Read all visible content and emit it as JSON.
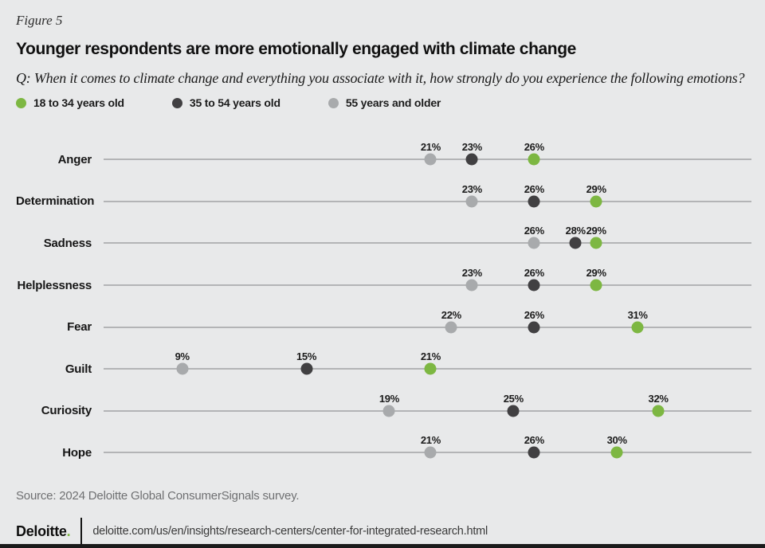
{
  "figure_label": "Figure 5",
  "title": "Younger respondents are more emotionally engaged with climate change",
  "question": "Q: When it comes to climate change and everything you associate with it, how strongly do you experience the following emotions?",
  "legend": {
    "items": [
      {
        "label": "18 to 34 years old",
        "color": "#7DB742"
      },
      {
        "label": "35 to 54 years old",
        "color": "#414042"
      },
      {
        "label": "55 years and older",
        "color": "#A8AAAC"
      }
    ]
  },
  "chart_data": {
    "type": "dot-plot",
    "title": "Younger respondents are more emotionally engaged with climate change",
    "categories": [
      "Anger",
      "Determination",
      "Sadness",
      "Helplessness",
      "Fear",
      "Guilt",
      "Curiosity",
      "Hope"
    ],
    "series": [
      {
        "name": "55 years and older",
        "color": "#A8AAAC",
        "values": [
          21,
          23,
          26,
          23,
          22,
          9,
          19,
          21
        ]
      },
      {
        "name": "35 to 54 years old",
        "color": "#414042",
        "values": [
          23,
          26,
          28,
          26,
          26,
          15,
          25,
          26
        ]
      },
      {
        "name": "18 to 34 years old",
        "color": "#7DB742",
        "values": [
          26,
          29,
          29,
          29,
          31,
          21,
          32,
          30
        ]
      }
    ],
    "value_suffix": "%",
    "value_labels": true,
    "xlim": [
      5.2,
      36.5
    ],
    "grid": "horizontal category lines",
    "legend_position": "top-left"
  },
  "source": "Source: 2024 Deloitte Global ConsumerSignals survey.",
  "footer": {
    "brand": "Deloitte",
    "brand_period": ".",
    "url": "deloitte.com/us/en/insights/research-centers/center-for-integrated-research.html"
  },
  "colors": {
    "background": "#E8E9EA",
    "row_line": "#B3B4B6",
    "accent_green": "#7DB742",
    "bottom_bar": "#1A1A1A"
  }
}
